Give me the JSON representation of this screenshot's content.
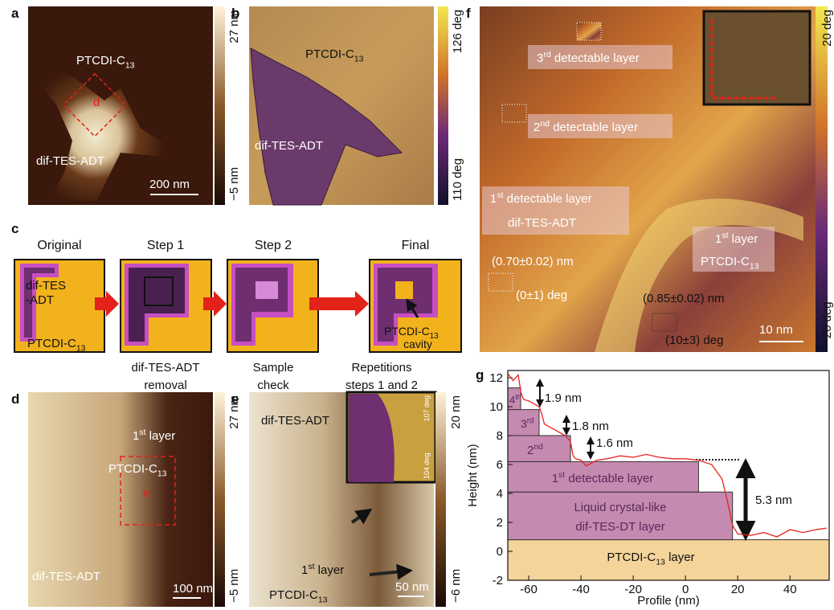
{
  "panel_labels": [
    "a",
    "b",
    "c",
    "d",
    "e",
    "f",
    "g"
  ],
  "a": {
    "ptcdi": {
      "base": "PTCDI-C",
      "sub": "13"
    },
    "box_label": "d",
    "dif": "dif-TES-ADT",
    "scale": "200 nm",
    "colorbar": [
      "27 nm",
      "−5 nm"
    ]
  },
  "b": {
    "ptcdi": {
      "base": "PTCDI-C",
      "sub": "13"
    },
    "dif": "dif-TES-ADT",
    "colorbar": [
      "126 deg",
      "110 deg"
    ]
  },
  "c": {
    "steps": [
      "Original",
      "Step 1",
      "Step 2",
      "Final"
    ],
    "dif": [
      "dif-TES",
      "-ADT"
    ],
    "ptcdi": {
      "base": "PTCDI-C",
      "sub": "13"
    },
    "captions": [
      [
        "dif-TES-ADT",
        "removal"
      ],
      [
        "Sample",
        "check"
      ],
      [
        "Repetitions",
        "steps 1 and 2"
      ]
    ],
    "cavity": {
      "base": "PTCDI-C",
      "sub": "13",
      "line2": "cavity"
    }
  },
  "d": {
    "layer": {
      "base": "1",
      "sup": "st",
      "rest": " layer"
    },
    "ptcdi": {
      "base": "PTCDI-C",
      "sub": "13"
    },
    "box_label": "e",
    "dif": "dif-TES-ADT",
    "scale": "100 nm",
    "colorbar": [
      "27 nm",
      "−5 nm"
    ]
  },
  "e": {
    "dif": "dif-TES-ADT",
    "layer": {
      "base": "1",
      "sup": "st",
      "rest": " layer"
    },
    "ptcdi": {
      "base": "PTCDI-C",
      "sub": "13"
    },
    "scale": "50 nm",
    "colorbar": [
      "20 nm",
      "−6 nm"
    ],
    "inset_colorbar": [
      "107 deg",
      "104 deg"
    ]
  },
  "f": {
    "layers": [
      {
        "base": "3",
        "sup": "rd",
        "rest": " detectable layer"
      },
      {
        "base": "2",
        "sup": "nd",
        "rest": " detectable layer"
      },
      {
        "base": "1",
        "sup": "st",
        "rest": " detectable layer"
      }
    ],
    "dif": "dif-TES-ADT",
    "layer1": {
      "base": "1",
      "sup": "st",
      "rest": " layer"
    },
    "ptcdi": {
      "base": "PTCDI-C",
      "sub": "13"
    },
    "measures": [
      "(0.70±0.02) nm",
      "(0±1) deg",
      "(0.85±0.02) nm",
      "(10±3) deg"
    ],
    "scale": "10 nm",
    "colorbar": [
      "20 deg",
      "−20 deg"
    ]
  },
  "chart_data": {
    "type": "line",
    "xlabel": "Profile (nm)",
    "ylabel": "Height (nm)",
    "xlim": [
      -68,
      55
    ],
    "ylim": [
      -2,
      12.5
    ],
    "xticks": [
      -60,
      -40,
      -20,
      0,
      20,
      40
    ],
    "yticks": [
      -2,
      0,
      2,
      4,
      6,
      8,
      10,
      12
    ],
    "series": [
      {
        "color": "#e8231f",
        "x": [
          -68,
          -66,
          -64,
          -63,
          -62,
          -60,
          -58,
          -56,
          -55,
          -54,
          -52,
          -50,
          -48,
          -46,
          -44,
          -43,
          -42,
          -40,
          -38,
          -36,
          -34,
          -30,
          -25,
          -20,
          -15,
          -10,
          -5,
          0,
          5,
          10,
          14,
          16,
          18,
          20,
          25,
          30,
          35,
          40,
          45,
          50,
          54
        ],
        "values": [
          12.3,
          11.8,
          12.2,
          11,
          10.5,
          10.4,
          10.2,
          10,
          9.5,
          8.8,
          8.6,
          8.4,
          8.2,
          8.0,
          7.6,
          6.6,
          6.4,
          6.3,
          5.9,
          6.1,
          6.3,
          6.4,
          6.6,
          6.5,
          6.7,
          6.5,
          6.4,
          6.4,
          6.3,
          6.0,
          5.0,
          3.5,
          1.8,
          1.2,
          1.1,
          1.3,
          1.0,
          1.5,
          1.3,
          1.5,
          1.6
        ]
      }
    ],
    "annotations": [
      "1.9 nm",
      "1.8 nm",
      "1.6 nm",
      "5.3 nm"
    ],
    "layer_labels": [
      {
        "base": "4",
        "sup": "th"
      },
      {
        "base": "3",
        "sup": "rd"
      },
      {
        "base": "2",
        "sup": "nd"
      },
      {
        "base": "1",
        "sup": "st",
        "rest": " detectable layer"
      },
      {
        "base": "Liquid crystal-like"
      },
      {
        "base": "dif-TES-DT layer"
      },
      {
        "base": "PTCDI-C",
        "sub": "13",
        "rest": " layer"
      }
    ]
  }
}
